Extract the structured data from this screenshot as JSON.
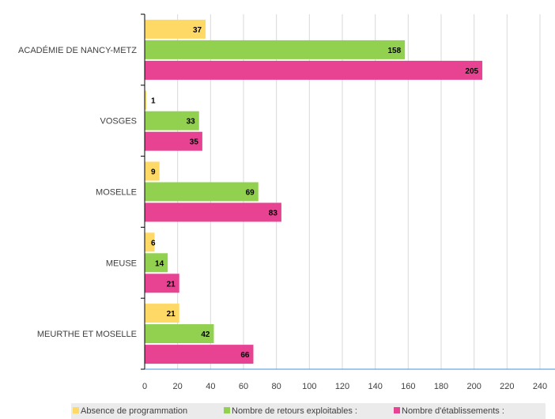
{
  "chart_data": {
    "type": "bar",
    "orientation": "horizontal",
    "categories": [
      "ACADÉMIE DE NANCY-METZ",
      "VOSGES",
      "MOSELLE",
      "MEUSE",
      "MEURTHE ET MOSELLE"
    ],
    "series": [
      {
        "name": "Absence de programmation",
        "color": "#FFD966",
        "values": [
          37,
          1,
          9,
          6,
          21
        ]
      },
      {
        "name": "Nombre de retours exploitables :",
        "color": "#92D050",
        "values": [
          158,
          33,
          69,
          14,
          42
        ]
      },
      {
        "name": "Nombre d'établissements :",
        "color": "#E84393",
        "values": [
          205,
          35,
          83,
          21,
          66
        ]
      }
    ],
    "xticks": [
      "0",
      "20",
      "40",
      "60",
      "80",
      "100",
      "120",
      "140",
      "160",
      "180",
      "200",
      "220",
      "240"
    ],
    "xlim": [
      0,
      240
    ],
    "grid": true,
    "legend_position": "bottom",
    "colors": {
      "background": "#FFFFFF",
      "legend_background": "#EBEBEB",
      "gridline": "#D9D9D9",
      "axis": "#808080",
      "x_axis": "#4A90D9"
    }
  }
}
